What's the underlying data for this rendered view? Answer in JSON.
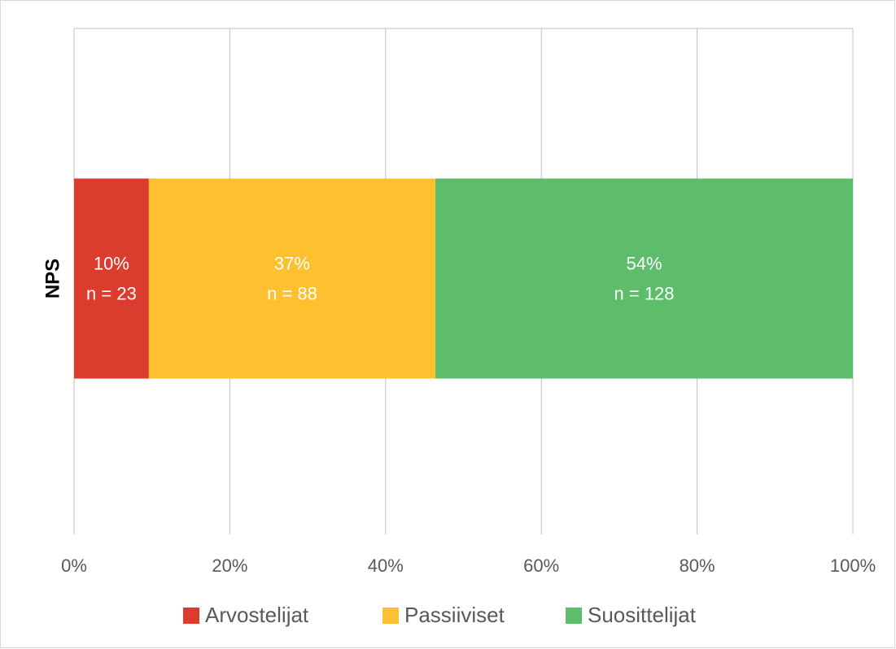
{
  "chart_data": {
    "type": "stacked_bar_horizontal",
    "categories": [
      "NPS"
    ],
    "series": [
      {
        "name": "Arvostelijat",
        "color": "#dc3c2d",
        "values": [
          9.6
        ],
        "value_labels": [
          "10%"
        ],
        "count_labels": [
          "n = 23"
        ]
      },
      {
        "name": "Passiiviset",
        "color": "#fdc02f",
        "values": [
          36.8
        ],
        "value_labels": [
          "37%"
        ],
        "count_labels": [
          "n = 88"
        ]
      },
      {
        "name": "Suosittelijat",
        "color": "#5dbd6b",
        "values": [
          53.6
        ],
        "value_labels": [
          "54%"
        ],
        "count_labels": [
          "n = 128"
        ]
      }
    ],
    "xlim": [
      0,
      100
    ],
    "xticks": [
      {
        "value": 0,
        "label": "0%"
      },
      {
        "value": 20,
        "label": "20%"
      },
      {
        "value": 40,
        "label": "40%"
      },
      {
        "value": 60,
        "label": "60%"
      },
      {
        "value": 80,
        "label": "80%"
      },
      {
        "value": 100,
        "label": "100%"
      }
    ],
    "grid": true,
    "legend": "bottom"
  }
}
